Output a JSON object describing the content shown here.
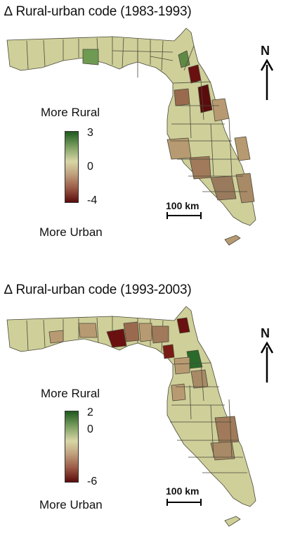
{
  "panels": [
    {
      "title": "Rural-urban code (1983-1993)",
      "delta_symbol": "∆",
      "legend": {
        "top_label": "More Rural",
        "bottom_label": "More Urban",
        "max": "3",
        "mid": "0",
        "min": "-4"
      },
      "scale_bar": "100 km",
      "north": "N"
    },
    {
      "title": "Rural-urban code (1993-2003)",
      "delta_symbol": "∆",
      "legend": {
        "top_label": "More Rural",
        "bottom_label": "More Urban",
        "max": "2",
        "mid": "0",
        "min": "-6"
      },
      "scale_bar": "100 km",
      "north": "N"
    }
  ],
  "colors": {
    "neutral": "#cfcf9a",
    "dark_green": "#1f5a1f",
    "light_green": "#6f9a52",
    "light_brown": "#b89a72",
    "mid_brown": "#9a6a4e",
    "dark_red": "#6a1010",
    "border": "#4a4a3a"
  }
}
